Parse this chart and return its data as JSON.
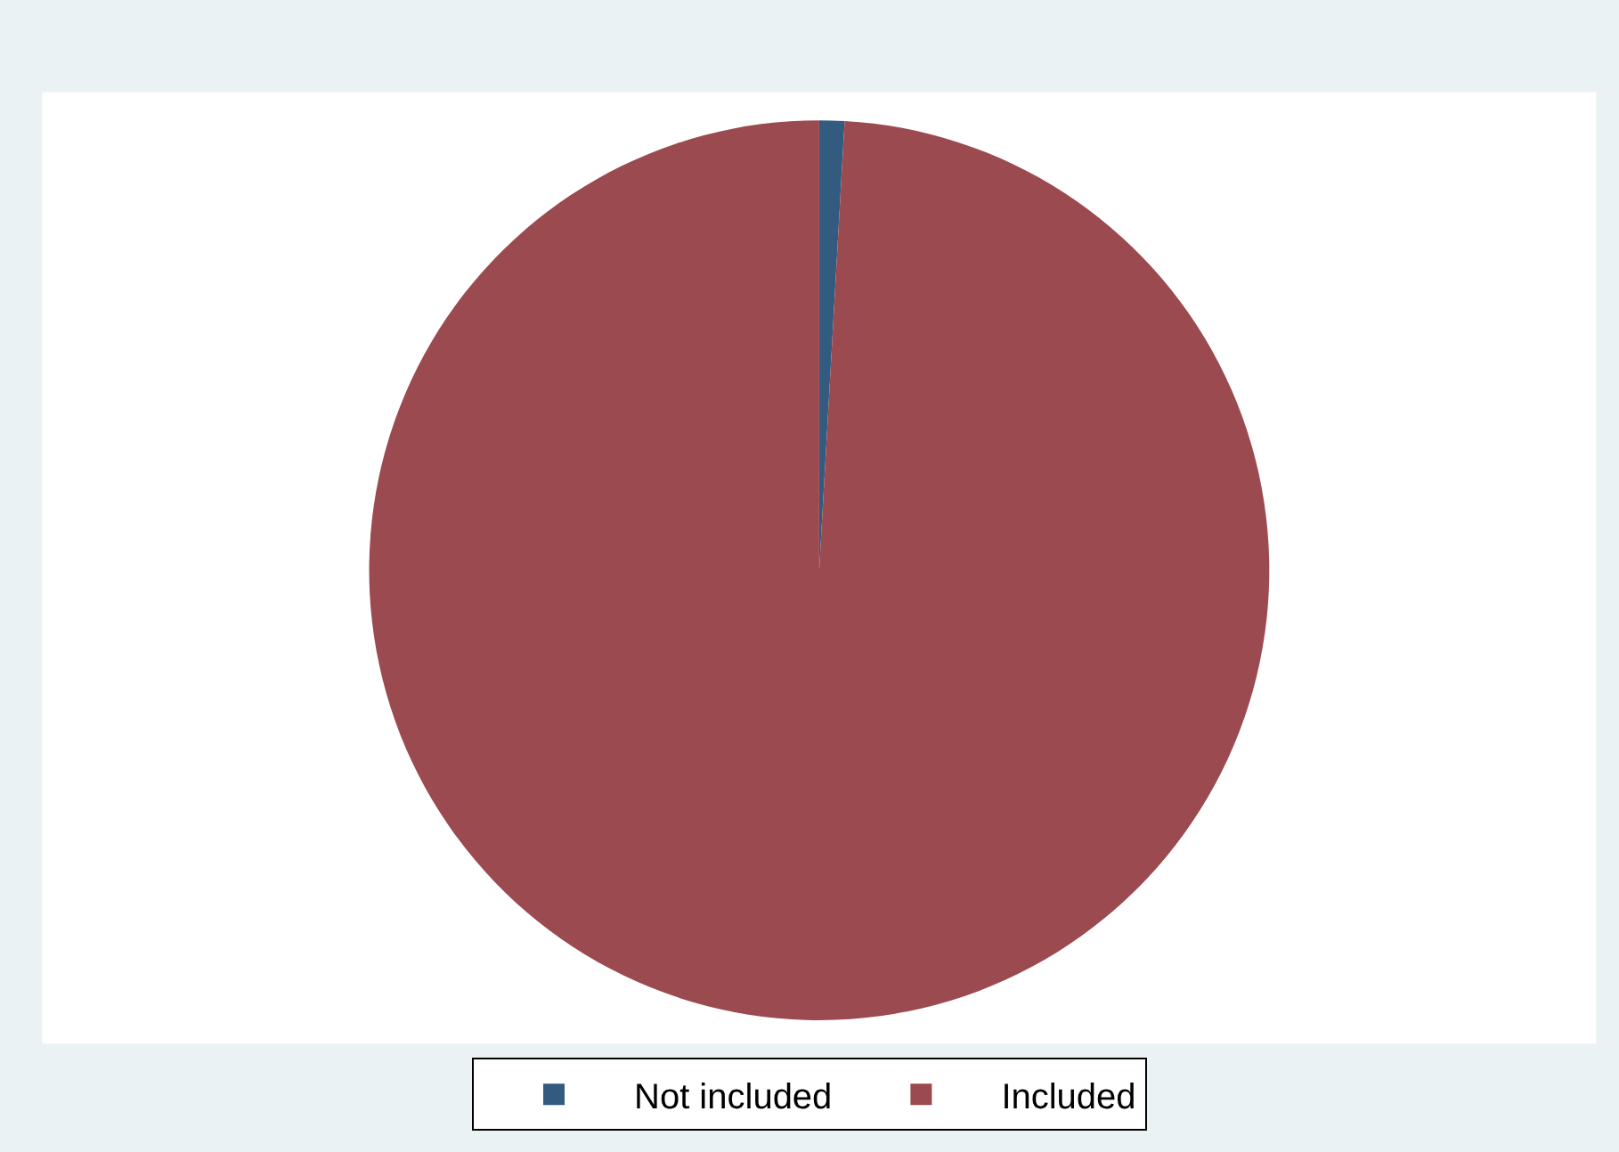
{
  "chart_data": {
    "type": "pie",
    "categories": [
      "Not included",
      "Included"
    ],
    "values": [
      0.9,
      99.1
    ],
    "colors": [
      "#335b80",
      "#9b4a50"
    ],
    "legend": "bottom"
  }
}
